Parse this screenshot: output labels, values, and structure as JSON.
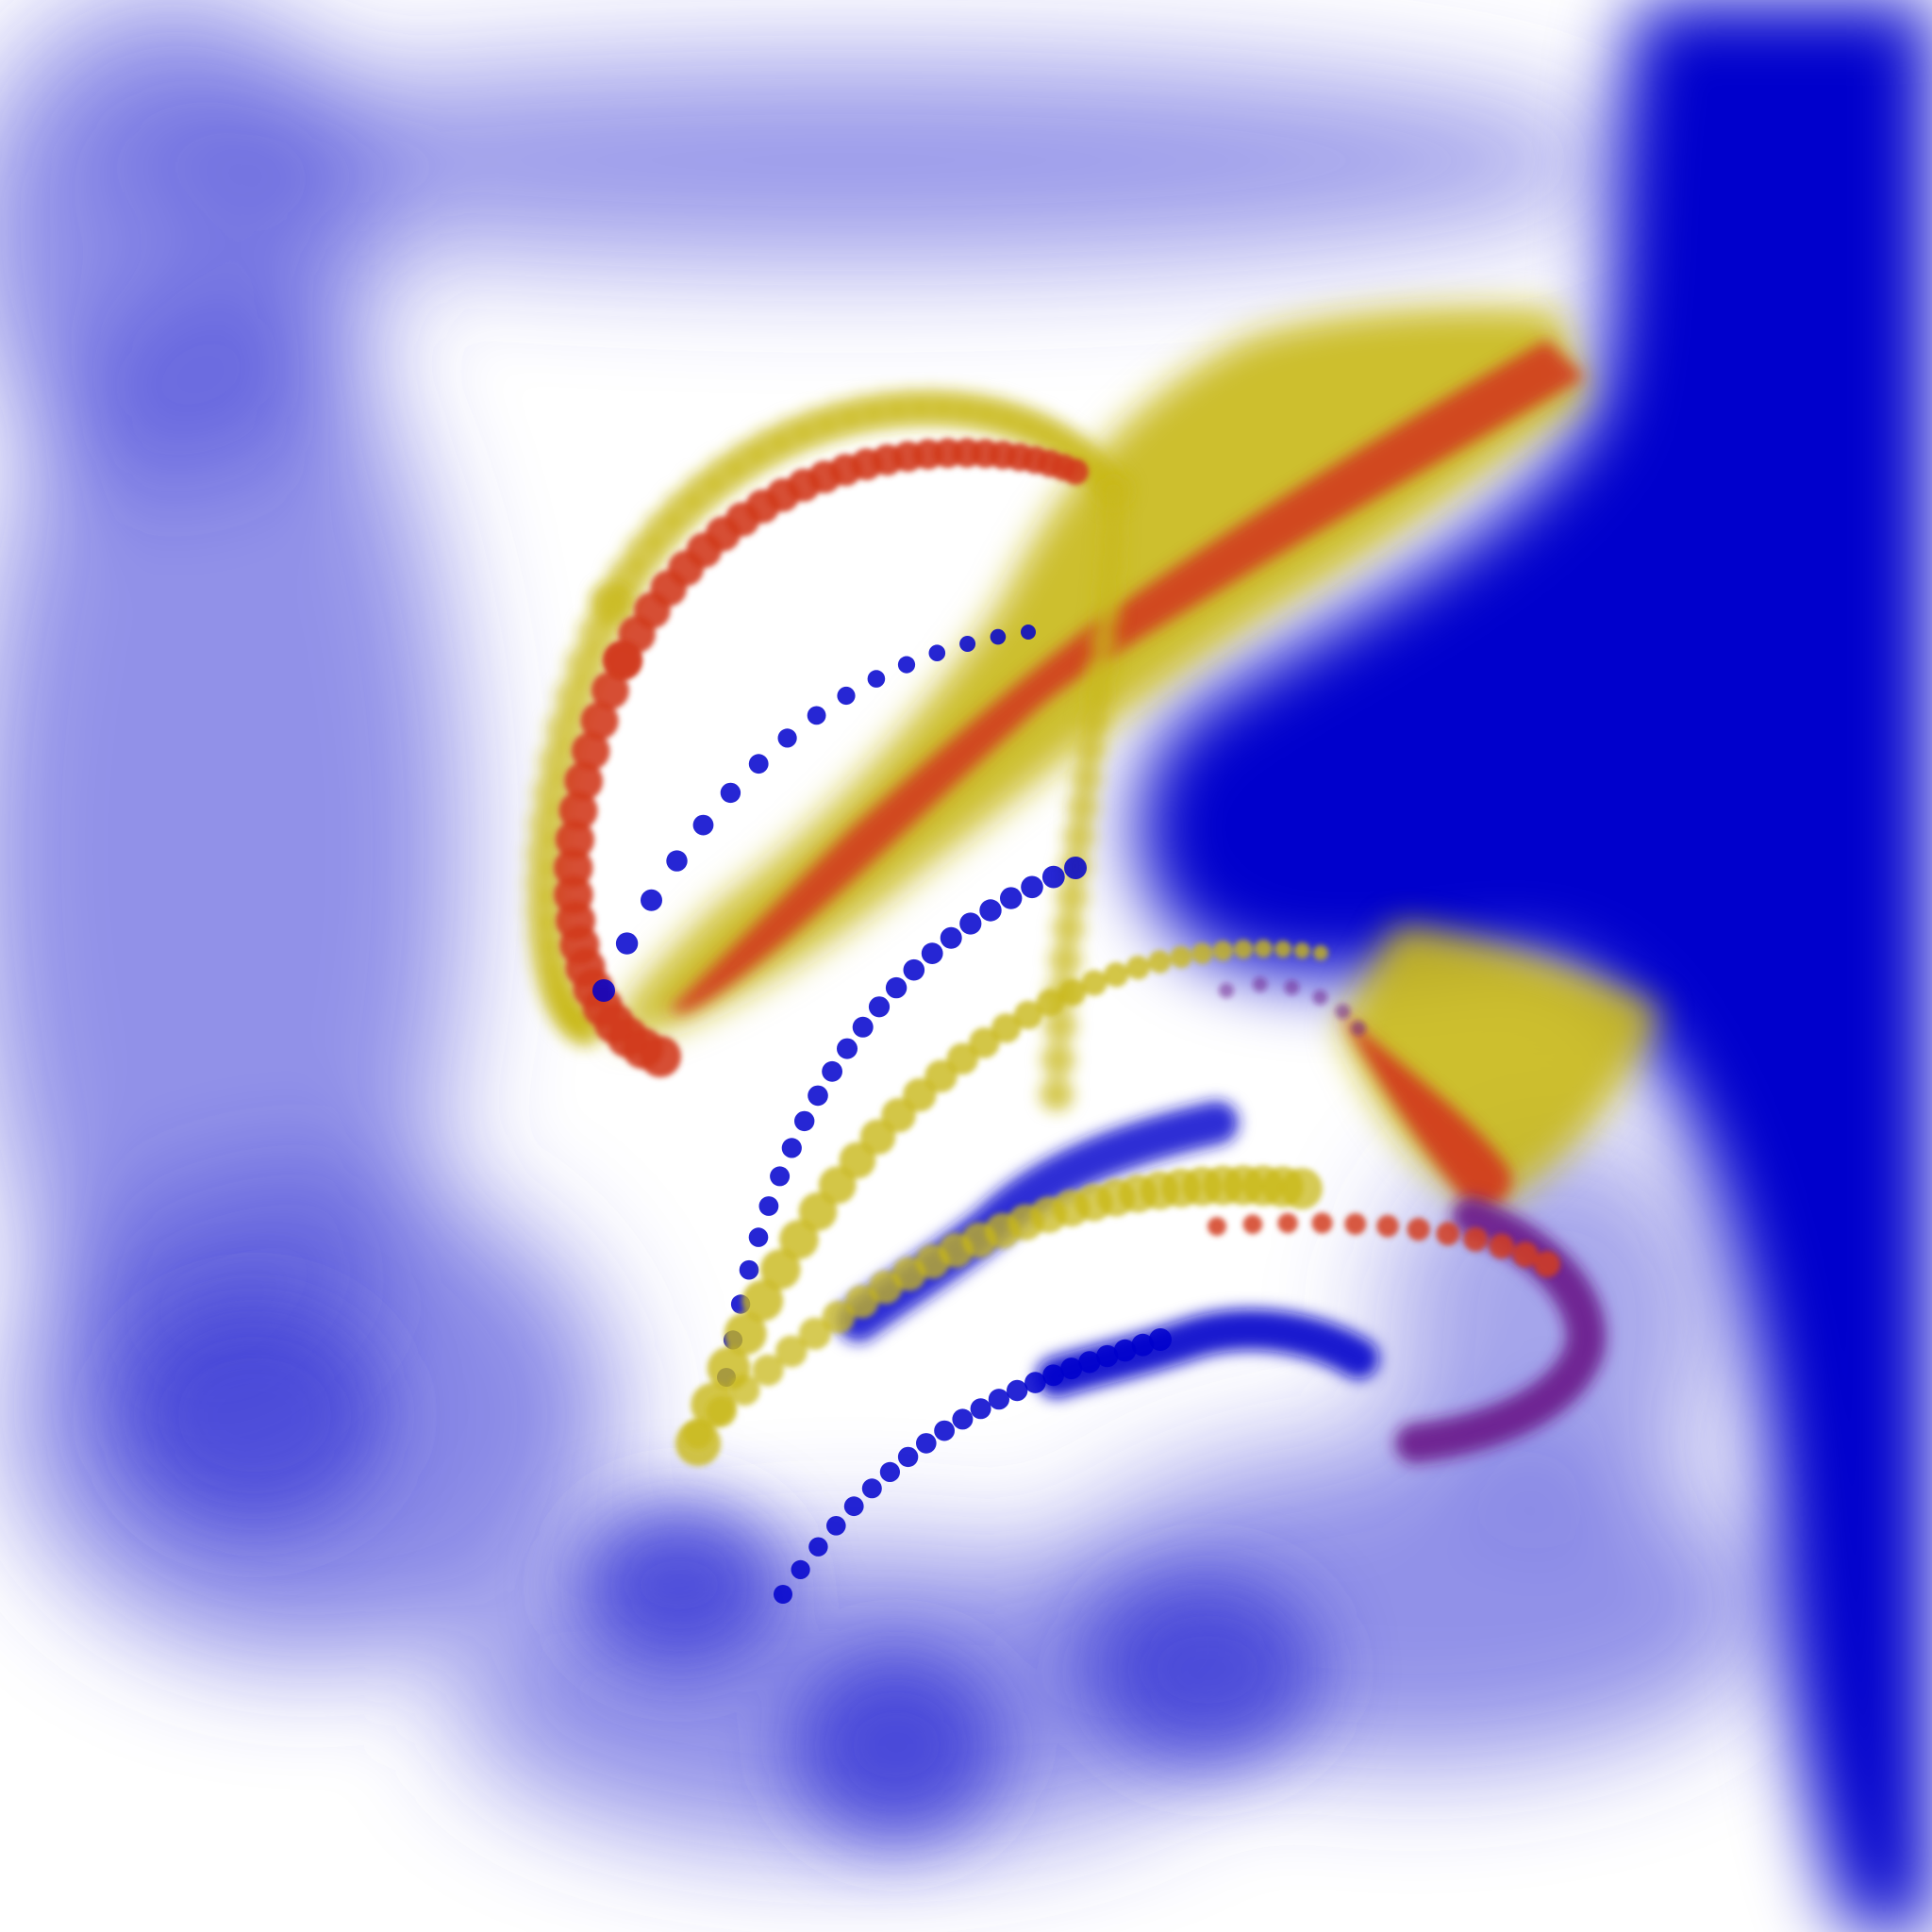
{
  "artwork": {
    "palette": {
      "background": "#ffffff",
      "blue": "#0000cc",
      "blue_soft": "#4a4ad8",
      "yellow": "#c8b81a",
      "red": "#d23c1e",
      "purple": "#6a1a8a"
    }
  }
}
